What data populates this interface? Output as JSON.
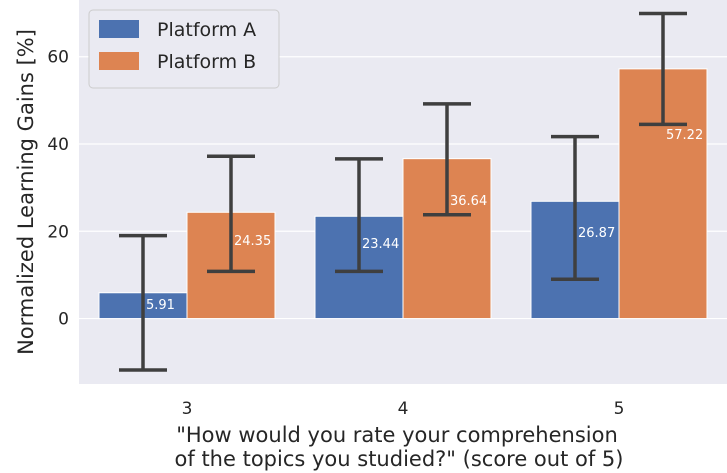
{
  "chart_data": {
    "type": "bar",
    "categories": [
      "3",
      "4",
      "5"
    ],
    "series": [
      {
        "name": "Platform A",
        "color": "#4c72b0",
        "values": [
          5.91,
          23.44,
          26.87
        ],
        "labels": [
          "5.91",
          "23.44",
          "26.87"
        ],
        "err_low": [
          -11.8,
          10.8,
          9.0
        ],
        "err_high": [
          19.0,
          36.6,
          41.7
        ]
      },
      {
        "name": "Platform B",
        "color": "#dd8452",
        "values": [
          24.35,
          36.64,
          57.22
        ],
        "labels": [
          "24.35",
          "36.64",
          "57.22"
        ],
        "err_low": [
          10.8,
          23.8,
          44.5
        ],
        "err_high": [
          37.2,
          49.2,
          69.9
        ]
      }
    ],
    "title": "",
    "xlabel": [
      "\"How would you rate your comprehension",
      "of the topics you studied?\" (score out of 5)"
    ],
    "ylabel": "Normalized Learning Gains [%]",
    "ylim": [
      -15,
      73
    ],
    "yticks": [
      0,
      20,
      40,
      60
    ],
    "grid": true,
    "legend_position": "top-left",
    "background": "#eaeaf2",
    "error_bar_color": "#3f3f3f"
  }
}
